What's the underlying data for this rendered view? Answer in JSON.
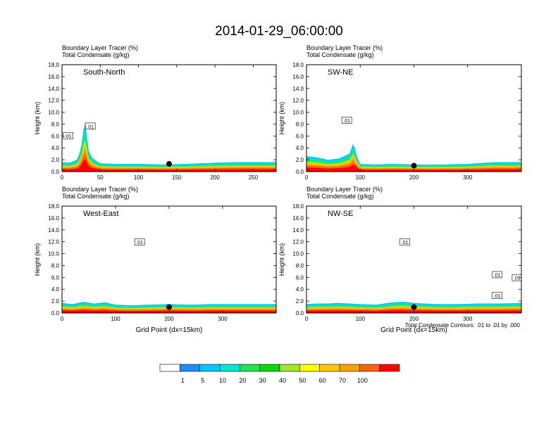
{
  "title": "2014-01-29_06:00:00",
  "footnote": "Total Condensate Contours: .01 to .01 by .000",
  "colorbar": {
    "labels": [
      "1",
      "5",
      "10",
      "20",
      "30",
      "40",
      "50",
      "60",
      "70",
      "100"
    ],
    "colors": [
      "#ffffff",
      "#1e8cff",
      "#00c8ff",
      "#00e6d2",
      "#1ee650",
      "#00dc00",
      "#a0e632",
      "#ffff00",
      "#ffc800",
      "#ffa000",
      "#ff6400",
      "#ff0000"
    ]
  },
  "chart_data": [
    {
      "type": "heatmap",
      "name": "South-North",
      "header_line1": "Boundary Layer Tracer   (%)",
      "header_line2": "Total Condensate   (g/kg)",
      "ylabel": "Height (km)",
      "xlabel": "",
      "xlim": [
        0,
        280
      ],
      "ylim": [
        0,
        18
      ],
      "xticks": [
        0,
        50,
        100,
        150,
        200,
        250
      ],
      "yticks": [
        "0.0",
        "2.0",
        "4.0",
        "6.0",
        "8.0",
        "10.0",
        "12.0",
        "14.0",
        "16.0",
        "18.0"
      ],
      "marker": [
        140,
        1.3
      ],
      "contour_labels": [
        {
          "text": ".01",
          "x": 8,
          "y": 6.0
        },
        {
          "text": ".01",
          "x": 37,
          "y": 7.6
        }
      ],
      "tracer_profile": {
        "x": [
          0,
          10,
          20,
          25,
          28,
          30,
          32,
          35,
          40,
          50,
          70,
          100,
          130,
          160,
          200,
          230,
          260,
          280
        ],
        "top_km": [
          1.6,
          1.5,
          2.0,
          4.0,
          7.0,
          8.5,
          6.5,
          3.5,
          2.2,
          1.4,
          1.3,
          1.3,
          1.2,
          1.3,
          1.5,
          1.6,
          1.6,
          1.6
        ]
      }
    },
    {
      "type": "heatmap",
      "name": "SW-NE",
      "header_line1": "Boundary Layer Tracer   (%)",
      "header_line2": "Total Condensate   (g/kg)",
      "ylabel": "Height (km)",
      "xlabel": "",
      "xlim": [
        0,
        400
      ],
      "ylim": [
        0,
        18
      ],
      "xticks": [
        0,
        100,
        200,
        300
      ],
      "yticks": [
        "0.0",
        "2.0",
        "4.0",
        "6.0",
        "8.0",
        "10.0",
        "12.0",
        "14.0",
        "16.0",
        "18.0"
      ],
      "marker": [
        200,
        1.0
      ],
      "contour_labels": [
        {
          "text": ".01",
          "x": 75,
          "y": 8.6
        }
      ],
      "tracer_profile": {
        "x": [
          0,
          20,
          40,
          60,
          80,
          88,
          92,
          100,
          130,
          160,
          200,
          250,
          300,
          350,
          400
        ],
        "top_km": [
          2.6,
          2.4,
          2.0,
          2.2,
          3.0,
          5.0,
          3.0,
          1.3,
          1.2,
          1.3,
          1.2,
          1.2,
          1.3,
          1.6,
          1.6
        ]
      }
    },
    {
      "type": "heatmap",
      "name": "West-East",
      "header_line1": "Boundary Layer Tracer   (%)",
      "header_line2": "Total Condensate   (g/kg)",
      "ylabel": "Height (km)",
      "xlabel": "Grid Point (dx=15km)",
      "xlim": [
        0,
        400
      ],
      "ylim": [
        0,
        18
      ],
      "xticks": [
        0,
        100,
        200,
        300
      ],
      "yticks": [
        "0.0",
        "2.0",
        "4.0",
        "6.0",
        "8.0",
        "10.0",
        "12.0",
        "14.0",
        "16.0",
        "18.0"
      ],
      "marker": [
        200,
        1.0
      ],
      "contour_labels": [
        {
          "text": ".01",
          "x": 145,
          "y": 11.9
        }
      ],
      "tracer_profile": {
        "x": [
          0,
          20,
          40,
          60,
          80,
          100,
          130,
          160,
          200,
          240,
          280,
          320,
          360,
          400
        ],
        "top_km": [
          1.7,
          1.5,
          1.9,
          1.6,
          1.8,
          1.4,
          1.3,
          1.4,
          1.5,
          1.4,
          1.5,
          1.5,
          1.5,
          1.5
        ]
      }
    },
    {
      "type": "heatmap",
      "name": "NW-SE",
      "header_line1": "Boundary Layer Tracer   (%)",
      "header_line2": "Total Condensate   (g/kg)",
      "ylabel": "Height (km)",
      "xlabel": "Grid Point (dx=15km)",
      "xlim": [
        0,
        400
      ],
      "ylim": [
        0,
        18
      ],
      "xticks": [
        0,
        100,
        200,
        300
      ],
      "yticks": [
        "0.0",
        "2.0",
        "4.0",
        "6.0",
        "8.0",
        "10.0",
        "12.0",
        "14.0",
        "16.0",
        "18.0"
      ],
      "marker": [
        200,
        1.0
      ],
      "contour_labels": [
        {
          "text": ".01",
          "x": 183,
          "y": 11.9
        },
        {
          "text": ".01",
          "x": 355,
          "y": 6.4
        },
        {
          "text": ".01",
          "x": 392,
          "y": 5.9
        },
        {
          "text": ".01",
          "x": 355,
          "y": 2.9
        }
      ],
      "tracer_profile": {
        "x": [
          0,
          20,
          40,
          60,
          100,
          130,
          160,
          180,
          200,
          240,
          280,
          320,
          360,
          400
        ],
        "top_km": [
          1.5,
          1.6,
          1.6,
          1.7,
          1.5,
          1.4,
          1.8,
          1.9,
          1.7,
          1.5,
          1.5,
          1.6,
          1.6,
          1.7
        ]
      }
    }
  ]
}
